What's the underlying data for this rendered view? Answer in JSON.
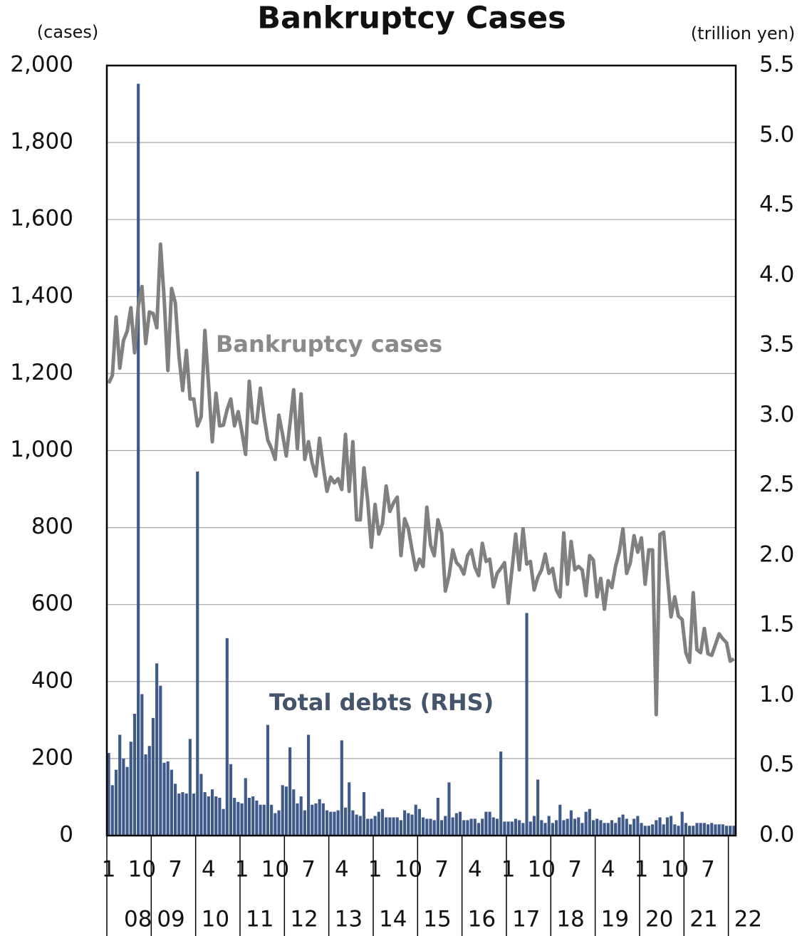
{
  "chart_data": {
    "type": "combo",
    "title": "Bankruptcy Cases",
    "y_label": "(cases)",
    "y2_label": "(trillion yen)",
    "annotations": [
      "Bankruptcy cases",
      "Total debts (RHS)"
    ],
    "categories": [
      "1",
      null,
      null,
      null,
      null,
      null,
      null,
      null,
      null,
      "10",
      null,
      null,
      null,
      null,
      null,
      null,
      null,
      null,
      "7",
      null,
      null,
      null,
      null,
      null,
      null,
      null,
      null,
      "4",
      null,
      null,
      null,
      null,
      null,
      null,
      null,
      null,
      "1",
      null,
      null,
      null,
      null,
      null,
      null,
      null,
      null,
      "10",
      null,
      null,
      null,
      null,
      null,
      null,
      null,
      null,
      "7",
      null,
      null,
      null,
      null,
      null,
      null,
      null,
      null,
      "4",
      null,
      null,
      null,
      null,
      null,
      null,
      null,
      null,
      "1",
      null,
      null,
      null,
      null,
      null,
      null,
      null,
      null,
      "10",
      null,
      null,
      null,
      null,
      null,
      null,
      null,
      null,
      "7",
      null,
      null,
      null,
      null,
      null,
      null,
      null,
      null,
      "4",
      null,
      null,
      null,
      null,
      null,
      null,
      null,
      null,
      "1",
      null,
      null,
      null,
      null,
      null,
      null,
      null,
      null,
      "10",
      null,
      null,
      null,
      null,
      null,
      null,
      null,
      null,
      "7",
      null,
      null,
      null,
      null,
      null,
      null,
      null,
      null,
      "4",
      null,
      null,
      null,
      null,
      null,
      null,
      null,
      null,
      "1",
      null,
      null,
      null,
      null,
      null,
      null,
      null,
      null,
      "10",
      null,
      null,
      null,
      null,
      null,
      null,
      null,
      null,
      "7",
      null,
      null,
      null,
      null,
      null,
      null,
      null
    ],
    "year_categories": [
      "08",
      null,
      null,
      null,
      null,
      null,
      null,
      null,
      null,
      null,
      null,
      null,
      "09",
      null,
      null,
      null,
      null,
      null,
      null,
      null,
      null,
      null,
      null,
      null,
      "10",
      null,
      null,
      null,
      null,
      null,
      null,
      null,
      null,
      null,
      null,
      null,
      "11",
      null,
      null,
      null,
      null,
      null,
      null,
      null,
      null,
      null,
      null,
      null,
      "12",
      null,
      null,
      null,
      null,
      null,
      null,
      null,
      null,
      null,
      null,
      null,
      "13",
      null,
      null,
      null,
      null,
      null,
      null,
      null,
      null,
      null,
      null,
      null,
      "14",
      null,
      null,
      null,
      null,
      null,
      null,
      null,
      null,
      null,
      null,
      null,
      "15",
      null,
      null,
      null,
      null,
      null,
      null,
      null,
      null,
      null,
      null,
      null,
      "16",
      null,
      null,
      null,
      null,
      null,
      null,
      null,
      null,
      null,
      null,
      null,
      "17",
      null,
      null,
      null,
      null,
      null,
      null,
      null,
      null,
      null,
      null,
      null,
      "18",
      null,
      null,
      null,
      null,
      null,
      null,
      null,
      null,
      null,
      null,
      null,
      "19",
      null,
      null,
      null,
      null,
      null,
      null,
      null,
      null,
      null,
      null,
      null,
      "20",
      null,
      null,
      null,
      null,
      null,
      null,
      null,
      null,
      null,
      null,
      null,
      "21",
      null,
      null,
      null,
      null,
      null,
      null,
      null,
      null,
      null,
      null,
      null,
      "22",
      null
    ],
    "series": [
      {
        "name": "Total debts (RHS)",
        "type": "bar",
        "axis": "y2",
        "color": "#3f5a8a",
        "values": [
          0.59,
          0.36,
          0.47,
          0.72,
          0.55,
          0.49,
          0.67,
          0.87,
          5.37,
          1.01,
          0.58,
          0.64,
          0.84,
          1.23,
          1.07,
          0.52,
          0.53,
          0.47,
          0.37,
          0.3,
          0.31,
          0.3,
          0.69,
          0.3,
          2.6,
          0.44,
          0.31,
          0.28,
          0.33,
          0.28,
          0.27,
          0.19,
          1.41,
          0.51,
          0.27,
          0.24,
          0.23,
          0.41,
          0.27,
          0.28,
          0.25,
          0.22,
          0.22,
          0.79,
          0.22,
          0.16,
          0.18,
          0.36,
          0.35,
          0.63,
          0.33,
          0.23,
          0.28,
          0.18,
          0.72,
          0.22,
          0.23,
          0.26,
          0.23,
          0.18,
          0.17,
          0.17,
          0.18,
          0.68,
          0.2,
          0.38,
          0.18,
          0.15,
          0.14,
          0.31,
          0.12,
          0.12,
          0.14,
          0.17,
          0.19,
          0.13,
          0.13,
          0.13,
          0.13,
          0.11,
          0.18,
          0.16,
          0.15,
          0.22,
          0.19,
          0.13,
          0.12,
          0.12,
          0.11,
          0.27,
          0.11,
          0.14,
          0.38,
          0.13,
          0.16,
          0.17,
          0.11,
          0.11,
          0.12,
          0.12,
          0.09,
          0.12,
          0.17,
          0.17,
          0.13,
          0.12,
          0.6,
          0.1,
          0.1,
          0.1,
          0.12,
          0.11,
          0.09,
          1.59,
          0.1,
          0.14,
          0.4,
          0.11,
          0.09,
          0.14,
          0.09,
          0.11,
          0.22,
          0.11,
          0.12,
          0.18,
          0.12,
          0.13,
          0.09,
          0.17,
          0.19,
          0.11,
          0.12,
          0.11,
          0.09,
          0.09,
          0.11,
          0.09,
          0.13,
          0.15,
          0.12,
          0.08,
          0.12,
          0.14,
          0.09,
          0.07,
          0.07,
          0.08,
          0.11,
          0.13,
          0.08,
          0.13,
          0.14,
          0.08,
          0.07,
          0.17,
          0.09,
          0.07,
          0.07,
          0.09,
          0.09,
          0.09,
          0.08,
          0.09,
          0.08,
          0.08,
          0.08,
          0.07,
          0.07,
          0.07
        ]
      },
      {
        "name": "Bankruptcy cases",
        "type": "line",
        "color": "#808080",
        "values": [
          1175,
          1195,
          1347,
          1214,
          1286,
          1310,
          1371,
          1254,
          1375,
          1426,
          1278,
          1360,
          1356,
          1319,
          1536,
          1393,
          1208,
          1421,
          1384,
          1245,
          1156,
          1260,
          1134,
          1134,
          1064,
          1088,
          1312,
          1171,
          1023,
          1149,
          1064,
          1066,
          1106,
          1134,
          1064,
          1101,
          1049,
          990,
          1180,
          1075,
          1071,
          1162,
          1088,
          1027,
          1005,
          977,
          1092,
          1042,
          986,
          1069,
          1158,
          1005,
          1147,
          977,
          1023,
          968,
          934,
          1032,
          958,
          894,
          931,
          916,
          927,
          899,
          1042,
          894,
          1023,
          820,
          820,
          955,
          871,
          749,
          860,
          783,
          810,
          908,
          842,
          864,
          879,
          727,
          823,
          797,
          742,
          690,
          718,
          699,
          853,
          755,
          727,
          820,
          786,
          635,
          675,
          742,
          709,
          699,
          679,
          727,
          742,
          697,
          675,
          759,
          712,
          718,
          646,
          681,
          694,
          709,
          603,
          690,
          783,
          690,
          797,
          705,
          712,
          638,
          671,
          690,
          731,
          681,
          694,
          638,
          620,
          786,
          653,
          764,
          690,
          699,
          690,
          623,
          727,
          716,
          620,
          668,
          588,
          662,
          644,
          699,
          736,
          797,
          681,
          709,
          779,
          736,
          773,
          653,
          742,
          742,
          314,
          782,
          788,
          675,
          568,
          620,
          570,
          561,
          475,
          450,
          631,
          483,
          475,
          538,
          472,
          468,
          496,
          524,
          511,
          501,
          453,
          459
        ]
      }
    ],
    "ylim": [
      0,
      2000
    ],
    "yticks": [
      0,
      200,
      400,
      600,
      800,
      {
        "value": 1000,
        "label": "1,000"
      },
      {
        "value": 1200,
        "label": "1,200"
      },
      {
        "value": 1400,
        "label": "1,400"
      },
      {
        "value": 1600,
        "label": "1,600"
      },
      {
        "value": 1800,
        "label": "1,800"
      },
      {
        "value": 2000,
        "label": "2,000"
      }
    ],
    "y2lim": [
      0,
      5.5
    ],
    "y2ticks": [
      {
        "value": 0,
        "label": "0.0"
      },
      0.5,
      {
        "value": 1,
        "label": "1.0"
      },
      1.5,
      {
        "value": 2,
        "label": "2.0"
      },
      2.5,
      {
        "value": 3,
        "label": "3.0"
      },
      3.5,
      {
        "value": 4,
        "label": "4.0"
      },
      4.5,
      {
        "value": 5,
        "label": "5.0"
      },
      5.5
    ],
    "grid": true
  }
}
